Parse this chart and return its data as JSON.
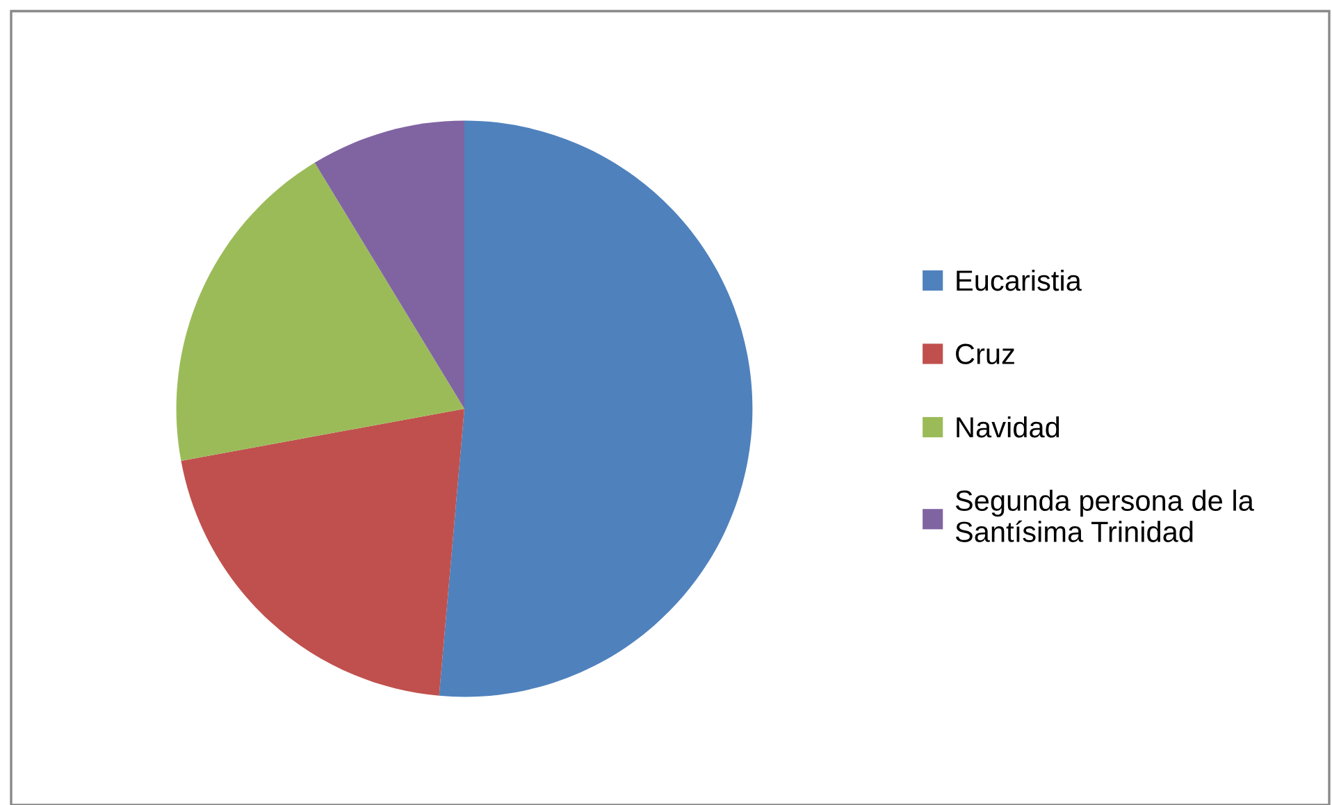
{
  "chart_data": {
    "type": "pie",
    "categories": [
      "Eucaristia",
      "Cruz",
      "Navidad",
      "Segunda persona de la\nSantísima Trinidad"
    ],
    "values": [
      51.4,
      20.7,
      19.2,
      8.7
    ],
    "colors": [
      "#4f81bd",
      "#c0504d",
      "#9bbb59",
      "#8064a2"
    ],
    "legend": "right"
  }
}
